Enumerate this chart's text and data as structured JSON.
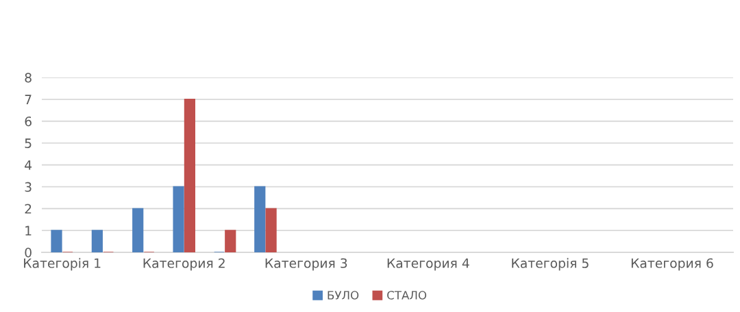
{
  "chart_data": {
    "type": "bar",
    "categories": [
      "Категорія 1",
      null,
      null,
      "Категория 2",
      null,
      null,
      "Категория 3",
      null,
      null,
      "Категория 4",
      null,
      null,
      "Категорія 5",
      null,
      null,
      "Категория 6",
      null
    ],
    "series": [
      {
        "name": "БУЛО",
        "color": "#4f81bd",
        "values": [
          1,
          1,
          2,
          3,
          0,
          3,
          null,
          null,
          null,
          null,
          null,
          null,
          null,
          null,
          null,
          null,
          null
        ]
      },
      {
        "name": "СТАЛО",
        "color": "#c0504d",
        "values": [
          0,
          0,
          0,
          7,
          1,
          2,
          null,
          null,
          null,
          null,
          null,
          null,
          null,
          null,
          null,
          null,
          null
        ]
      }
    ],
    "ylim": [
      0,
      8
    ],
    "yticks": [
      0,
      1,
      2,
      3,
      4,
      5,
      6,
      7,
      8
    ],
    "grid": "y",
    "legend": "bottom"
  }
}
